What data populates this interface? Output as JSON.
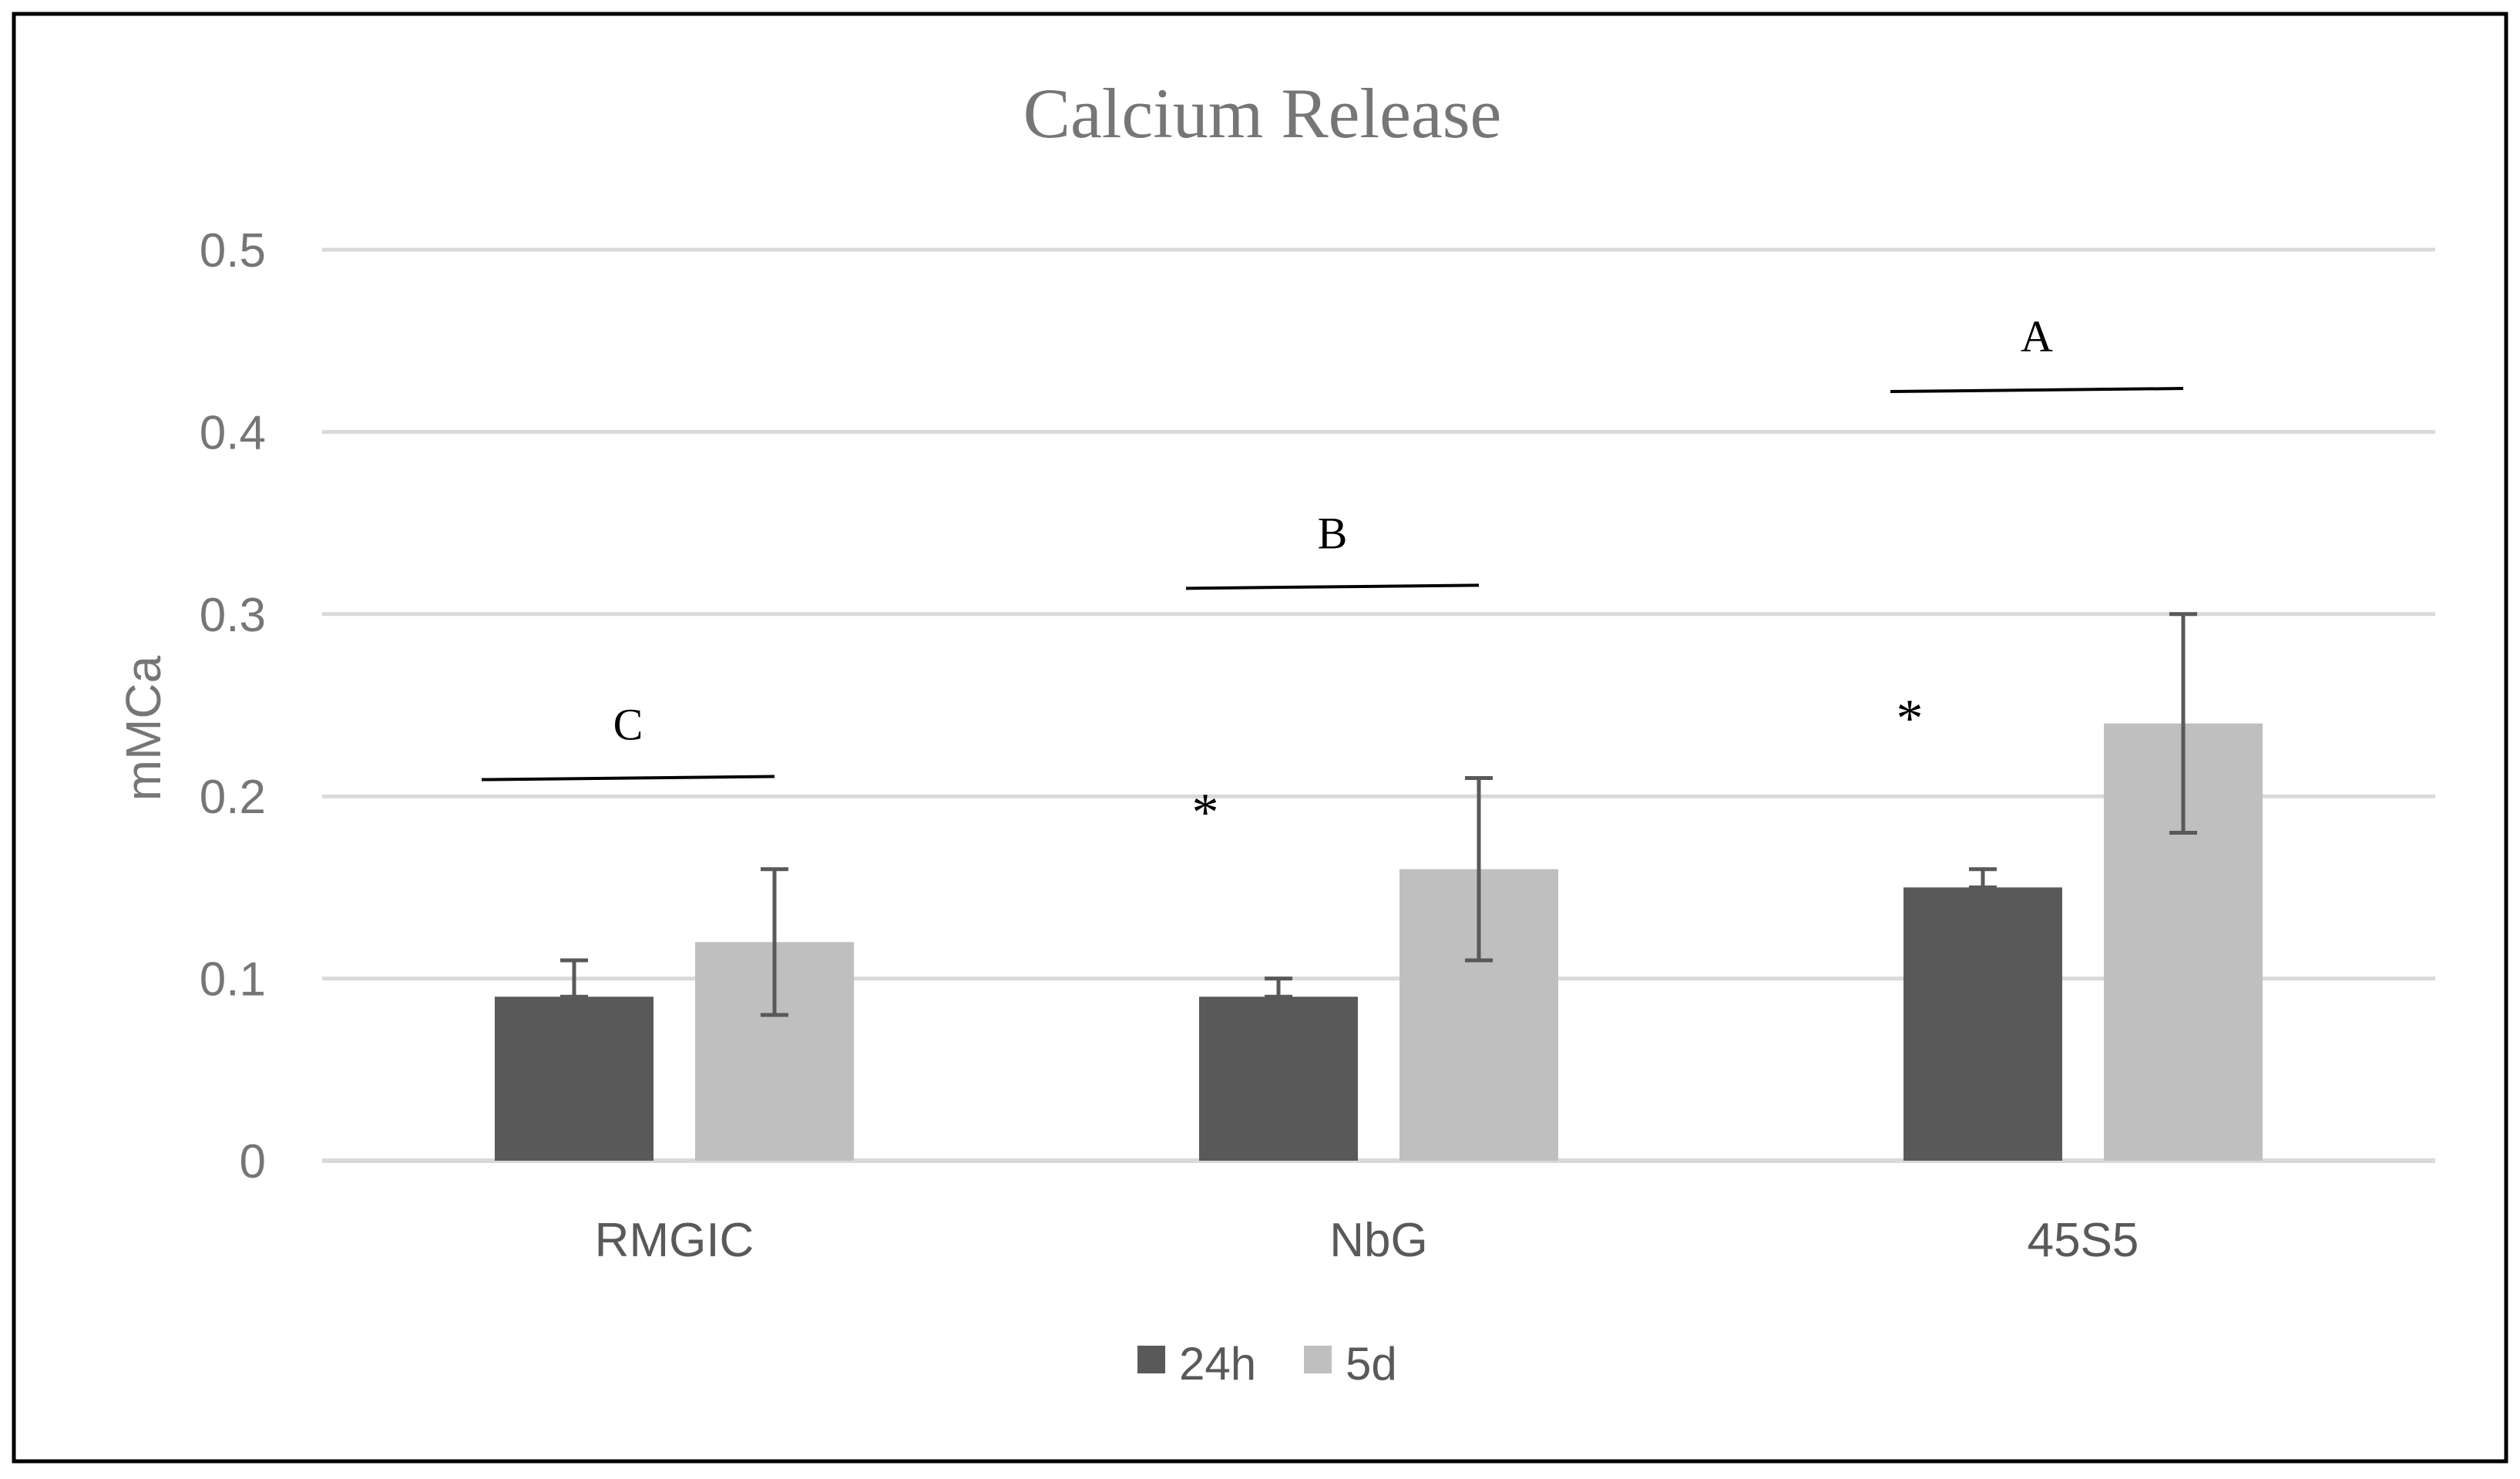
{
  "chart_data": {
    "type": "bar",
    "title": "Calcium Release",
    "xlabel": "",
    "ylabel": "mMCa",
    "ylim": [
      0,
      0.5
    ],
    "yticks": [
      "0",
      "0.1",
      "0.2",
      "0.3",
      "0.4",
      "0.5"
    ],
    "grid": true,
    "legend_position": "bottom",
    "categories": [
      "RMGIC",
      "NbG",
      "45S5"
    ],
    "series": [
      {
        "name": "24h",
        "color": "#595959",
        "values": [
          0.09,
          0.09,
          0.15
        ],
        "error_low": [
          0.09,
          0.09,
          0.15
        ],
        "error_high": [
          0.11,
          0.1,
          0.16
        ]
      },
      {
        "name": "5d",
        "color": "#bfbfbf",
        "values": [
          0.12,
          0.16,
          0.24
        ],
        "error_low": [
          0.08,
          0.11,
          0.18
        ],
        "error_high": [
          0.16,
          0.21,
          0.3
        ]
      }
    ],
    "annotations": {
      "group_letters": [
        {
          "text": "C",
          "y": 0.21
        },
        {
          "text": "B",
          "y": 0.315
        },
        {
          "text": "A",
          "y": 0.423
        }
      ],
      "asterisks": [
        {
          "text": "*",
          "category": 1
        },
        {
          "text": "*",
          "category": 2
        }
      ]
    }
  }
}
